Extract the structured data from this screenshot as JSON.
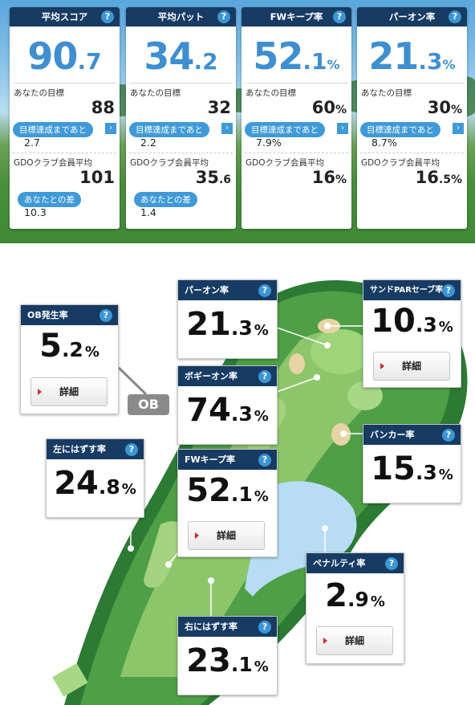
{
  "summary": [
    {
      "title": "平均スコア",
      "value_int": "90",
      "value_dec": ".7",
      "value_unit": "",
      "goal_label": "あなたの目標",
      "goal_int": "88",
      "goal_dec": "",
      "goal_unit": "",
      "to_goal_label": "目標達成まであと",
      "to_goal_value": "2.7",
      "avg_label": "GDOクラブ会員平均",
      "avg_int": "101",
      "avg_dec": "",
      "avg_unit": "",
      "diff_label": "あなたとの差",
      "diff_value": "10.3"
    },
    {
      "title": "平均パット",
      "value_int": "34",
      "value_dec": ".2",
      "value_unit": "",
      "goal_label": "あなたの目標",
      "goal_int": "32",
      "goal_dec": "",
      "goal_unit": "",
      "to_goal_label": "目標達成まであと",
      "to_goal_value": "2.2",
      "avg_label": "GDOクラブ会員平均",
      "avg_int": "35",
      "avg_dec": ".6",
      "avg_unit": "",
      "diff_label": "あなたとの差",
      "diff_value": "1.4"
    },
    {
      "title": "FWキープ率",
      "value_int": "52",
      "value_dec": ".1",
      "value_unit": "%",
      "goal_label": "あなたの目標",
      "goal_int": "60",
      "goal_dec": "",
      "goal_unit": "%",
      "to_goal_label": "目標達成まであと",
      "to_goal_value": "7.9%",
      "avg_label": "GDOクラブ会員平均",
      "avg_int": "16",
      "avg_dec": "",
      "avg_unit": "%"
    },
    {
      "title": "パーオン率",
      "value_int": "21",
      "value_dec": ".3",
      "value_unit": "%",
      "goal_label": "あなたの目標",
      "goal_int": "30",
      "goal_dec": "",
      "goal_unit": "%",
      "to_goal_label": "目標達成まであと",
      "to_goal_value": "8.7%",
      "avg_label": "GDOクラブ会員平均",
      "avg_int": "16",
      "avg_dec": ".5",
      "avg_unit": "%"
    }
  ],
  "help_icon": "?",
  "arrow_icon": "›",
  "course": {
    "ob_tag": "OB",
    "detail_label": "詳細",
    "ob": {
      "title": "OB発生率",
      "int": "5",
      "dec": ".2",
      "unit": "%"
    },
    "paron": {
      "title": "パーオン率",
      "int": "21",
      "dec": ".3",
      "unit": "%"
    },
    "sandpar": {
      "title": "サンドPARセーブ率",
      "int": "10",
      "dec": ".3",
      "unit": "%"
    },
    "bogeyon": {
      "title": "ボギーオン率",
      "int": "74",
      "dec": ".3",
      "unit": "%"
    },
    "left": {
      "title": "左にはずす率",
      "int": "24",
      "dec": ".8",
      "unit": "%"
    },
    "fwkeep": {
      "title": "FWキープ率",
      "int": "52",
      "dec": ".1",
      "unit": "%"
    },
    "bunker": {
      "title": "バンカー率",
      "int": "15",
      "dec": ".3",
      "unit": "%"
    },
    "penalty": {
      "title": "ペナルティ率",
      "int": "2",
      "dec": ".9",
      "unit": "%"
    },
    "right": {
      "title": "右にはずす率",
      "int": "23",
      "dec": ".1",
      "unit": "%"
    }
  },
  "colors": {
    "header": "#173b63",
    "accent": "#3f8fd0",
    "pill": "#3f9ad7"
  }
}
